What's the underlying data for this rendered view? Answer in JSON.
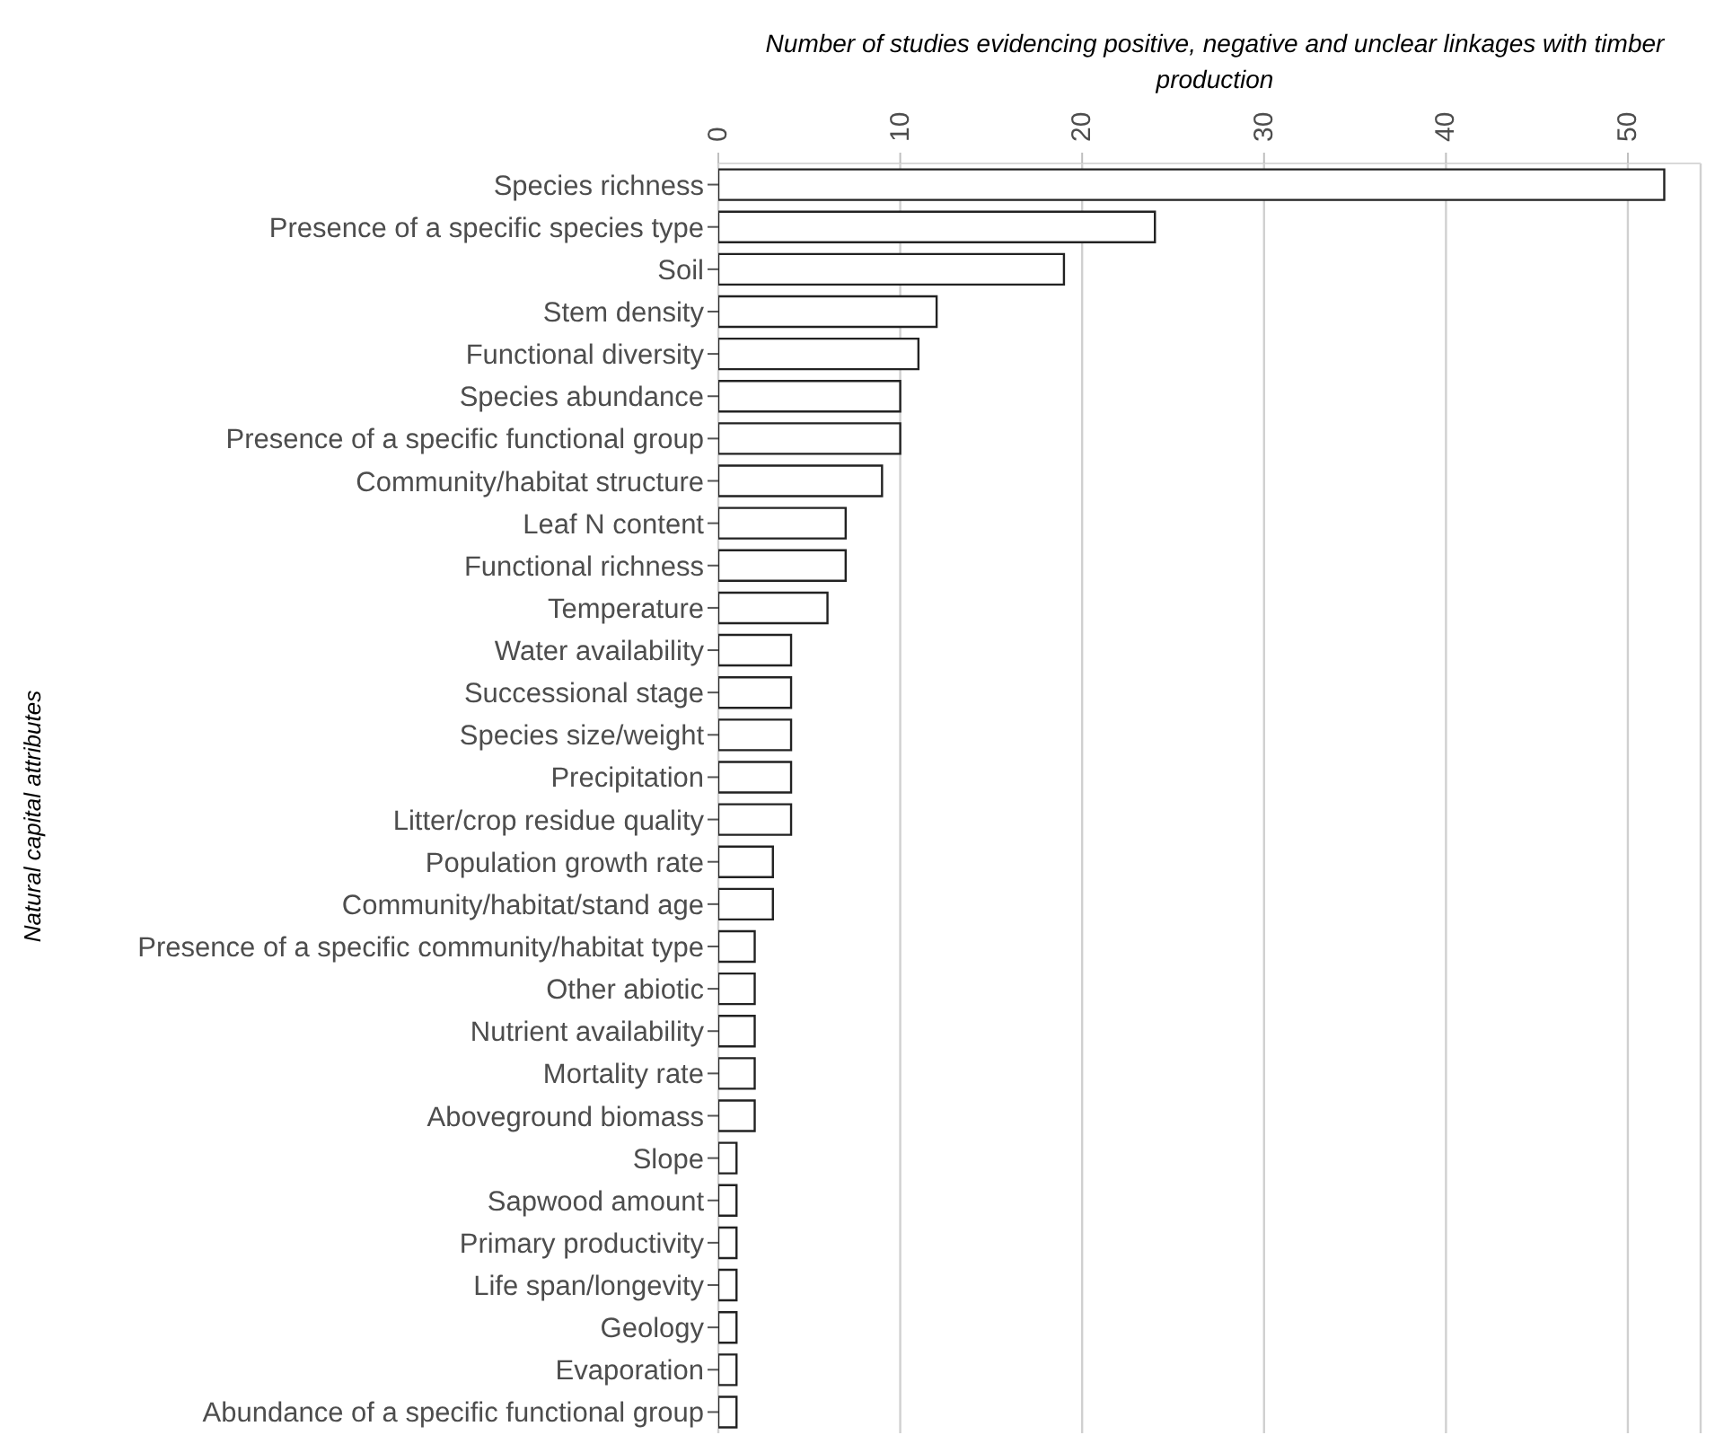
{
  "chart_data": {
    "type": "bar",
    "orientation": "horizontal",
    "xlabel": "Number of studies evidencing positive, negative and unclear linkages with timber production",
    "ylabel": "Natural capital attributes",
    "categories": [
      "Species richness",
      "Presence of a specific species type",
      "Soil",
      "Stem density",
      "Functional diversity",
      "Species abundance",
      "Presence of a specific functional group",
      "Community/habitat structure",
      "Leaf N content",
      "Functional richness",
      "Temperature",
      "Water availability",
      "Successional stage",
      "Species size/weight",
      "Precipitation",
      "Litter/crop residue quality",
      "Population growth rate",
      "Community/habitat/stand age",
      "Presence of a specific community/habitat type",
      "Other abiotic",
      "Nutrient availability",
      "Mortality rate",
      "Aboveground biomass",
      "Slope",
      "Sapwood amount",
      "Primary productivity",
      "Life span/longevity",
      "Geology",
      "Evaporation",
      "Abundance of a specific functional group"
    ],
    "values": [
      52,
      24,
      19,
      12,
      11,
      10,
      10,
      9,
      7,
      7,
      6,
      4,
      4,
      4,
      4,
      4,
      3,
      3,
      2,
      2,
      2,
      2,
      2,
      1,
      1,
      1,
      1,
      1,
      1,
      1
    ],
    "color": "#ffffff",
    "xlim": [
      0,
      54
    ],
    "xticks": [
      0,
      10,
      20,
      30,
      40,
      50
    ],
    "grid": "x"
  }
}
